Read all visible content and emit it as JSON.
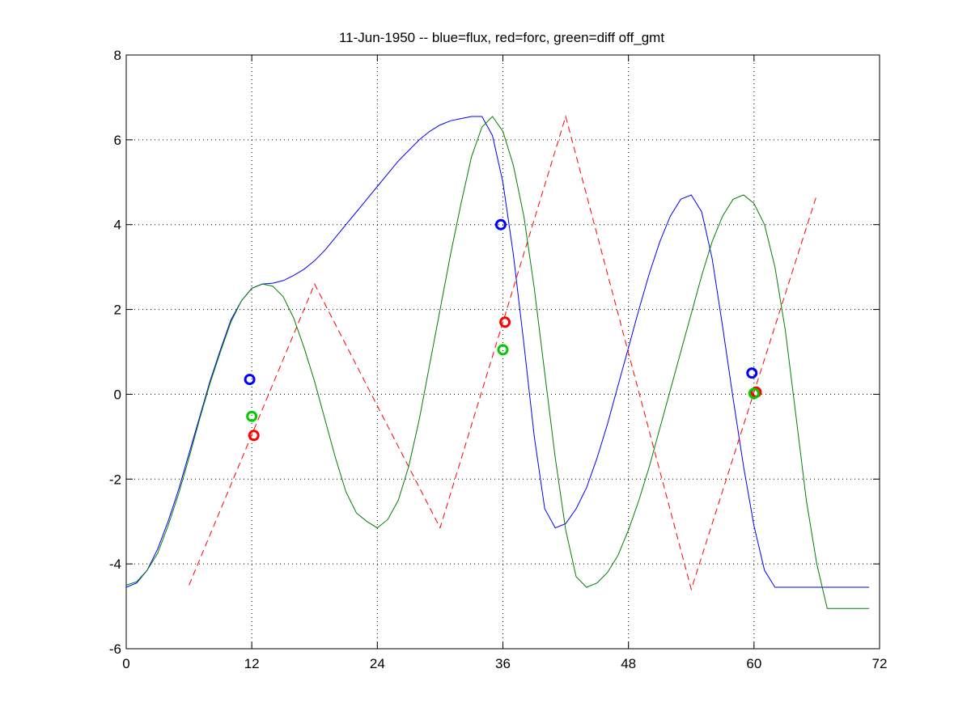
{
  "chart_data": {
    "type": "line",
    "title": "11-Jun-1950 -- blue=flux, red=forc, green=diff off_gmt",
    "xlabel": "",
    "ylabel": "",
    "xlim": [
      0,
      72
    ],
    "ylim": [
      -6,
      8
    ],
    "xticks": [
      0,
      12,
      24,
      36,
      48,
      60,
      72
    ],
    "xtick_labels": [
      "0",
      "12",
      "24",
      "36",
      "48",
      "60",
      "72"
    ],
    "yticks": [
      -6,
      -4,
      -2,
      0,
      2,
      4,
      6,
      8
    ],
    "ytick_labels": [
      "-6",
      "-4",
      "-2",
      "0",
      "2",
      "4",
      "6",
      "8"
    ],
    "grid": true,
    "series": [
      {
        "color": "#0000ff",
        "style": "solid",
        "x": [
          0,
          1,
          2,
          3,
          4,
          5,
          6,
          7,
          8,
          9,
          10,
          11,
          12,
          13,
          14,
          15,
          16,
          17,
          18,
          19,
          20,
          21,
          22,
          23,
          24,
          25,
          26,
          27,
          28,
          29,
          30,
          31,
          32,
          33,
          34,
          35,
          36,
          37,
          38,
          39,
          40,
          41,
          42,
          43,
          44,
          45,
          46,
          47,
          48,
          49,
          50,
          51,
          52,
          53,
          54,
          55,
          56,
          57,
          58,
          59,
          60,
          61,
          62,
          63,
          64,
          65,
          66,
          67,
          68,
          69,
          70,
          71
        ],
        "y": [
          -4.55,
          -4.45,
          -4.15,
          -3.65,
          -3.0,
          -2.25,
          -1.4,
          -0.55,
          0.3,
          1.05,
          1.75,
          2.2,
          2.5,
          2.6,
          2.62,
          2.68,
          2.8,
          2.95,
          3.15,
          3.4,
          3.7,
          4.0,
          4.3,
          4.6,
          4.9,
          5.2,
          5.5,
          5.75,
          6.0,
          6.2,
          6.35,
          6.45,
          6.5,
          6.55,
          6.55,
          6.1,
          5.0,
          3.3,
          1.2,
          -1.0,
          -2.7,
          -3.15,
          -3.05,
          -2.7,
          -2.2,
          -1.5,
          -0.7,
          0.2,
          1.1,
          2.0,
          2.85,
          3.6,
          4.2,
          4.6,
          4.7,
          4.3,
          3.2,
          1.6,
          -0.1,
          -1.7,
          -3.1,
          -4.15,
          -4.55,
          -4.55,
          -4.55,
          -4.55,
          -4.55,
          -4.55,
          -4.55,
          -4.55,
          -4.55,
          -4.55
        ]
      },
      {
        "color": "#ff0000",
        "style": "dashed",
        "x": [
          6,
          18,
          30,
          42,
          54,
          66
        ],
        "y": [
          -4.5,
          2.6,
          -3.15,
          6.55,
          -4.6,
          4.7
        ]
      },
      {
        "color": "#008000",
        "style": "solid",
        "x": [
          0,
          1,
          2,
          3,
          4,
          5,
          6,
          7,
          8,
          9,
          10,
          11,
          12,
          13,
          14,
          15,
          16,
          17,
          18,
          19,
          20,
          21,
          22,
          23,
          24,
          25,
          26,
          27,
          28,
          29,
          30,
          31,
          32,
          33,
          34,
          35,
          36,
          37,
          38,
          39,
          40,
          41,
          42,
          43,
          44,
          45,
          46,
          47,
          48,
          49,
          50,
          51,
          52,
          53,
          54,
          55,
          56,
          57,
          58,
          59,
          60,
          61,
          62,
          63,
          64,
          65,
          66,
          67,
          68,
          69,
          70,
          71
        ],
        "y": [
          -4.5,
          -4.42,
          -4.15,
          -3.75,
          -3.1,
          -2.35,
          -1.5,
          -0.6,
          0.25,
          1.0,
          1.7,
          2.2,
          2.5,
          2.6,
          2.55,
          2.3,
          1.8,
          1.1,
          0.3,
          -0.6,
          -1.5,
          -2.3,
          -2.8,
          -3.0,
          -3.15,
          -2.95,
          -2.5,
          -1.7,
          -0.6,
          0.7,
          2.0,
          3.3,
          4.5,
          5.6,
          6.3,
          6.55,
          6.2,
          5.4,
          4.2,
          2.5,
          0.5,
          -1.5,
          -3.2,
          -4.3,
          -4.55,
          -4.45,
          -4.2,
          -3.8,
          -3.2,
          -2.5,
          -1.7,
          -0.8,
          0.1,
          1.0,
          1.9,
          2.8,
          3.6,
          4.2,
          4.6,
          4.7,
          4.5,
          4.0,
          3.0,
          1.5,
          -0.5,
          -2.5,
          -4.0,
          -5.05,
          -5.05,
          -5.05,
          -5.05,
          -5.05
        ]
      }
    ],
    "markers": [
      {
        "color": "#0000ff",
        "x": 11.8,
        "y": 0.35
      },
      {
        "color": "#00cc00",
        "x": 12.0,
        "y": -0.52
      },
      {
        "color": "#ff0000",
        "x": 12.2,
        "y": -0.97
      },
      {
        "color": "#0000ff",
        "x": 35.8,
        "y": 4.0
      },
      {
        "color": "#ff0000",
        "x": 36.2,
        "y": 1.7
      },
      {
        "color": "#00cc00",
        "x": 36.0,
        "y": 1.05
      },
      {
        "color": "#0000ff",
        "x": 59.8,
        "y": 0.5
      },
      {
        "color": "#ff0000",
        "x": 60.2,
        "y": 0.05
      },
      {
        "color": "#00cc00",
        "x": 60.0,
        "y": 0.02
      }
    ]
  }
}
